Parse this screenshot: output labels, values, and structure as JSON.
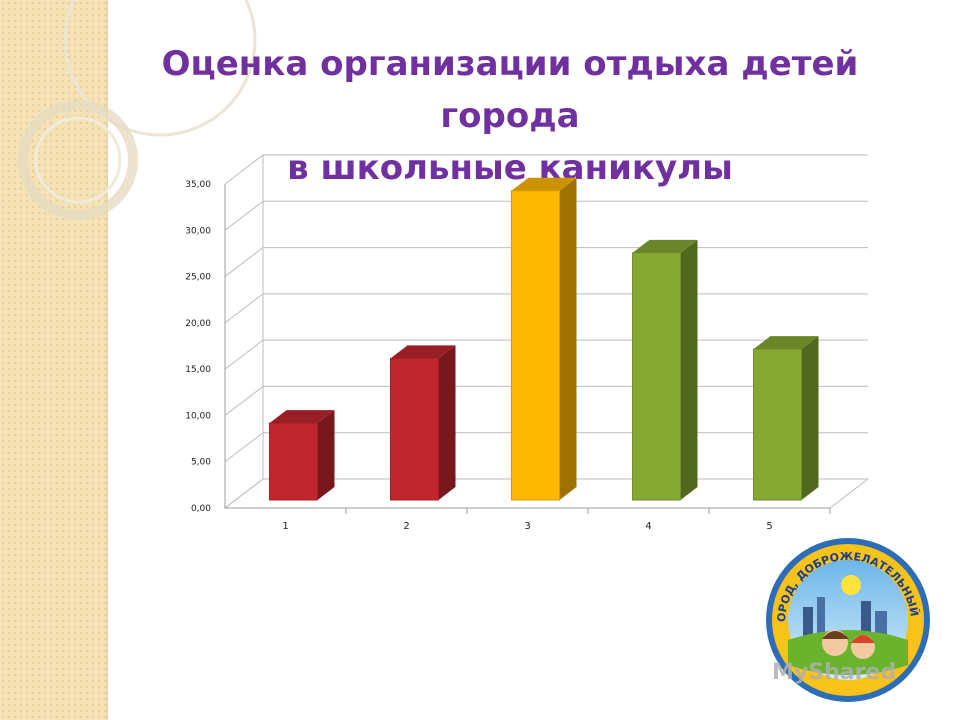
{
  "slide": {
    "title_line1": "Оценка организации отдыха детей города",
    "title_line2": "в школьные каникулы"
  },
  "chart_data": {
    "type": "bar",
    "title": "",
    "xlabel": "",
    "ylabel": "",
    "categories": [
      "1",
      "2",
      "3",
      "4",
      "5"
    ],
    "values": [
      8.3,
      15.3,
      33.4,
      26.7,
      16.3
    ],
    "bar_colors": [
      "#c0262e",
      "#c0262e",
      "#ffb800",
      "#84a832",
      "#84a832"
    ],
    "ylim": [
      0,
      35
    ],
    "yticks": [
      "0,00",
      "5,00",
      "10,00",
      "15,00",
      "20,00",
      "25,00",
      "30,00",
      "35,00"
    ],
    "grid": true,
    "legend": "none"
  },
  "emblem": {
    "text": "ПЕРМЬ-ГОРОД, ДОБРОЖЕЛАТЕЛЬНЫЙ К ДЕТЯМ"
  },
  "watermark": {
    "text": "MyShared"
  }
}
